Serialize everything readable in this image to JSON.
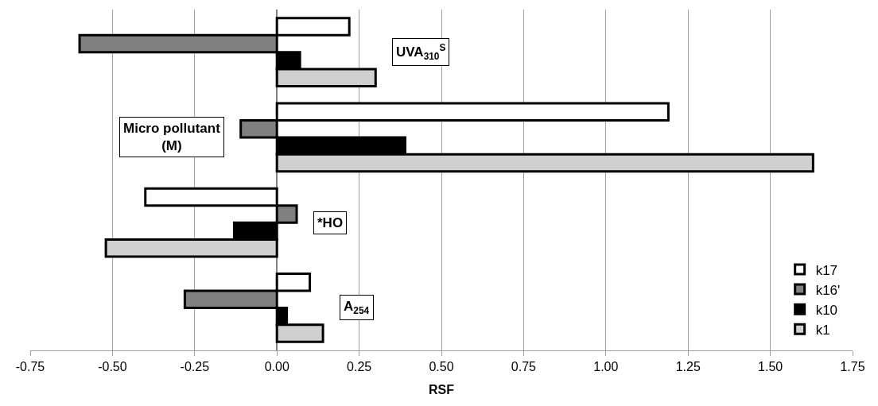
{
  "chart_data": {
    "type": "bar",
    "orientation": "horizontal",
    "xlabel": "RSF",
    "categories": [
      "UVA$_{310}$$^{S}$",
      "Micro pollutant (M)",
      "*HO",
      "A$_{254}$"
    ],
    "series": [
      {
        "name": "k17",
        "color": "#ffffff",
        "values": [
          0.22,
          1.19,
          -0.4,
          0.1
        ]
      },
      {
        "name": "k16'",
        "color": "#808080",
        "values": [
          -0.6,
          -0.11,
          0.06,
          -0.28
        ]
      },
      {
        "name": "k10",
        "color": "#000000",
        "values": [
          0.07,
          0.39,
          -0.13,
          0.03
        ]
      },
      {
        "name": "k1",
        "color": "#d0d0d0",
        "values": [
          0.3,
          1.63,
          -0.52,
          0.14
        ]
      }
    ],
    "xlim": [
      -0.75,
      1.75
    ],
    "xticks": [
      {
        "value": -0.75,
        "label": "-0.75"
      },
      {
        "value": -0.5,
        "label": "-0.50"
      },
      {
        "value": -0.25,
        "label": "-0.25"
      },
      {
        "value": 0,
        "label": "0.00"
      },
      {
        "value": 0.25,
        "label": "0.25"
      },
      {
        "value": 0.5,
        "label": "0.50"
      },
      {
        "value": 0.75,
        "label": "0.75"
      },
      {
        "value": 1.0,
        "label": "1.00"
      },
      {
        "value": 1.25,
        "label": "1.25"
      },
      {
        "value": 1.5,
        "label": "1.50"
      },
      {
        "value": 1.75,
        "label": "1.75"
      }
    ],
    "grid": "x",
    "legend": "bottom right",
    "tick_labels": "x"
  }
}
